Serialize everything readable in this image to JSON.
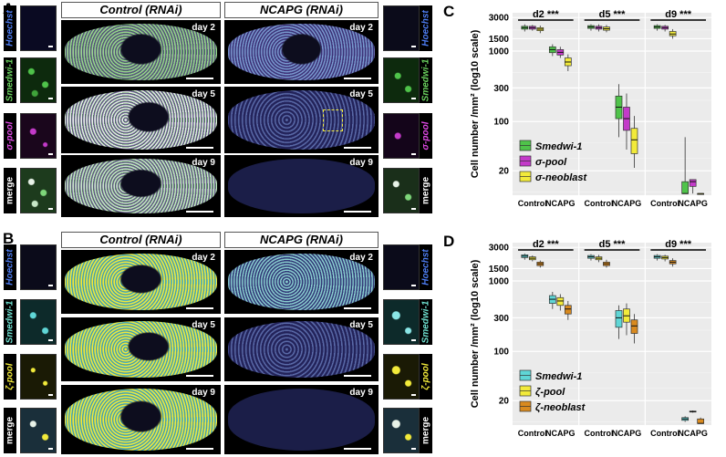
{
  "panels": {
    "A": {
      "letter": "A",
      "control_title": "Control (RNAi)",
      "ncapg_title": "NCAPG (RNAi)",
      "days": [
        "day 2",
        "day 5",
        "day 9"
      ],
      "channels": [
        "Hoechst",
        "Smedwi-1",
        "σ-pool",
        "merge"
      ]
    },
    "B": {
      "letter": "B",
      "control_title": "Control (RNAi)",
      "ncapg_title": "NCAPG (RNAi)",
      "days": [
        "day 2",
        "day 5",
        "day 9"
      ],
      "channels": [
        "Hoechst",
        "Smedwi-1",
        "ζ-pool",
        "merge"
      ]
    }
  },
  "colors": {
    "hoechst": "#3a5bd9",
    "A_smedwi": "#4fc34a",
    "A_pool": "#c33ac9",
    "A_neo": "#f2ea3a",
    "B_smedwi": "#5fd6d6",
    "B_pool": "#f2ea3a",
    "B_neo": "#d98a1f"
  },
  "chart_data": [
    {
      "panel": "C",
      "type": "box",
      "ylabel": "Cell number /mm² (log10 scale)",
      "yscale": "log10",
      "ylim": [
        9,
        3500
      ],
      "yticks": [
        20,
        100,
        300,
        1000,
        1500,
        3000
      ],
      "x_labels": [
        "Control",
        "NCAPG",
        "Control",
        "NCAPG",
        "Control",
        "NCAPG"
      ],
      "day_groups": [
        {
          "label": "d2 ***"
        },
        {
          "label": "d5 ***"
        },
        {
          "label": "d9 ***"
        }
      ],
      "series": [
        {
          "name": "Smedwi-1",
          "color_key": "A_smedwi"
        },
        {
          "name": "σ-pool",
          "color_key": "A_pool"
        },
        {
          "name": "σ-neoblast",
          "color_key": "A_neo"
        }
      ],
      "boxes": [
        {
          "g": 0,
          "c": 0,
          "s": 0,
          "lo": 1900,
          "q1": 2050,
          "med": 2150,
          "q3": 2250,
          "hi": 2400
        },
        {
          "g": 0,
          "c": 0,
          "s": 1,
          "lo": 1950,
          "q1": 2050,
          "med": 2150,
          "q3": 2250,
          "hi": 2350
        },
        {
          "g": 0,
          "c": 0,
          "s": 2,
          "lo": 1800,
          "q1": 1950,
          "med": 2050,
          "q3": 2150,
          "hi": 2300
        },
        {
          "g": 0,
          "c": 1,
          "s": 0,
          "lo": 850,
          "q1": 950,
          "med": 1050,
          "q3": 1150,
          "hi": 1250
        },
        {
          "g": 0,
          "c": 1,
          "s": 1,
          "lo": 800,
          "q1": 880,
          "med": 960,
          "q3": 1050,
          "hi": 1150
        },
        {
          "g": 0,
          "c": 1,
          "s": 2,
          "lo": 520,
          "q1": 620,
          "med": 700,
          "q3": 800,
          "hi": 900
        },
        {
          "g": 1,
          "c": 0,
          "s": 0,
          "lo": 1950,
          "q1": 2100,
          "med": 2200,
          "q3": 2300,
          "hi": 2400
        },
        {
          "g": 1,
          "c": 0,
          "s": 1,
          "lo": 1900,
          "q1": 2050,
          "med": 2150,
          "q3": 2250,
          "hi": 2400
        },
        {
          "g": 1,
          "c": 0,
          "s": 2,
          "lo": 1850,
          "q1": 1980,
          "med": 2080,
          "q3": 2200,
          "hi": 2350
        },
        {
          "g": 1,
          "c": 1,
          "s": 0,
          "lo": 60,
          "q1": 110,
          "med": 160,
          "q3": 230,
          "hi": 340
        },
        {
          "g": 1,
          "c": 1,
          "s": 1,
          "lo": 40,
          "q1": 75,
          "med": 110,
          "q3": 160,
          "hi": 250
        },
        {
          "g": 1,
          "c": 1,
          "s": 2,
          "lo": 22,
          "q1": 35,
          "med": 55,
          "q3": 80,
          "hi": 120
        },
        {
          "g": 2,
          "c": 0,
          "s": 0,
          "lo": 1950,
          "q1": 2100,
          "med": 2200,
          "q3": 2300,
          "hi": 2400
        },
        {
          "g": 2,
          "c": 0,
          "s": 1,
          "lo": 1900,
          "q1": 2050,
          "med": 2150,
          "q3": 2250,
          "hi": 2350
        },
        {
          "g": 2,
          "c": 0,
          "s": 2,
          "lo": 1500,
          "q1": 1650,
          "med": 1750,
          "q3": 1900,
          "hi": 2050
        },
        {
          "g": 2,
          "c": 1,
          "s": 0,
          "lo": 9.5,
          "q1": 9.5,
          "med": 9.5,
          "q3": 14,
          "hi": 60
        },
        {
          "g": 2,
          "c": 1,
          "s": 1,
          "lo": 9.5,
          "q1": 12,
          "med": 14,
          "q3": 15,
          "hi": 15
        },
        {
          "g": 2,
          "c": 1,
          "s": 2,
          "lo": 9.5,
          "q1": 9.5,
          "med": 9.5,
          "q3": 9.5,
          "hi": 9.5
        }
      ]
    },
    {
      "panel": "D",
      "type": "box",
      "ylabel": "Cell number /mm² (log10 scale)",
      "yscale": "log10",
      "ylim": [
        9,
        3500
      ],
      "yticks": [
        20,
        100,
        300,
        1000,
        1500,
        3000
      ],
      "x_labels": [
        "Control",
        "NCAPG",
        "Control",
        "NCAPG",
        "Control",
        "NCAPG"
      ],
      "day_groups": [
        {
          "label": "d2 ***"
        },
        {
          "label": "d5 ***"
        },
        {
          "label": "d9 ***"
        }
      ],
      "series": [
        {
          "name": "Smedwi-1",
          "color_key": "B_smedwi"
        },
        {
          "name": "ζ-pool",
          "color_key": "B_pool"
        },
        {
          "name": "ζ-neoblast",
          "color_key": "B_neo"
        }
      ],
      "boxes": [
        {
          "g": 0,
          "c": 0,
          "s": 0,
          "lo": 2000,
          "q1": 2150,
          "med": 2250,
          "q3": 2350,
          "hi": 2450
        },
        {
          "g": 0,
          "c": 0,
          "s": 1,
          "lo": 1900,
          "q1": 2000,
          "med": 2100,
          "q3": 2200,
          "hi": 2300
        },
        {
          "g": 0,
          "c": 0,
          "s": 2,
          "lo": 1550,
          "q1": 1650,
          "med": 1750,
          "q3": 1850,
          "hi": 1950
        },
        {
          "g": 0,
          "c": 1,
          "s": 0,
          "lo": 400,
          "q1": 480,
          "med": 550,
          "q3": 620,
          "hi": 700
        },
        {
          "g": 0,
          "c": 1,
          "s": 1,
          "lo": 380,
          "q1": 450,
          "med": 520,
          "q3": 580,
          "hi": 650
        },
        {
          "g": 0,
          "c": 1,
          "s": 2,
          "lo": 280,
          "q1": 340,
          "med": 400,
          "q3": 450,
          "hi": 520
        },
        {
          "g": 1,
          "c": 0,
          "s": 0,
          "lo": 1950,
          "q1": 2100,
          "med": 2200,
          "q3": 2300,
          "hi": 2400
        },
        {
          "g": 1,
          "c": 0,
          "s": 1,
          "lo": 1850,
          "q1": 2000,
          "med": 2100,
          "q3": 2200,
          "hi": 2350
        },
        {
          "g": 1,
          "c": 0,
          "s": 2,
          "lo": 1550,
          "q1": 1650,
          "med": 1750,
          "q3": 1850,
          "hi": 2000
        },
        {
          "g": 1,
          "c": 1,
          "s": 0,
          "lo": 150,
          "q1": 220,
          "med": 300,
          "q3": 380,
          "hi": 450
        },
        {
          "g": 1,
          "c": 1,
          "s": 1,
          "lo": 170,
          "q1": 260,
          "med": 320,
          "q3": 400,
          "hi": 480
        },
        {
          "g": 1,
          "c": 1,
          "s": 2,
          "lo": 130,
          "q1": 180,
          "med": 230,
          "q3": 280,
          "hi": 340
        },
        {
          "g": 2,
          "c": 0,
          "s": 0,
          "lo": 1950,
          "q1": 2100,
          "med": 2200,
          "q3": 2300,
          "hi": 2400
        },
        {
          "g": 2,
          "c": 0,
          "s": 1,
          "lo": 1900,
          "q1": 2050,
          "med": 2150,
          "q3": 2250,
          "hi": 2350
        },
        {
          "g": 2,
          "c": 0,
          "s": 2,
          "lo": 1600,
          "q1": 1750,
          "med": 1850,
          "q3": 1950,
          "hi": 2100
        },
        {
          "g": 2,
          "c": 1,
          "s": 0,
          "lo": 10,
          "q1": 10.5,
          "med": 11,
          "q3": 11.5,
          "hi": 12
        },
        {
          "g": 2,
          "c": 1,
          "s": 1,
          "lo": 13.5,
          "q1": 13.8,
          "med": 14,
          "q3": 14.2,
          "hi": 14.5
        },
        {
          "g": 2,
          "c": 1,
          "s": 2,
          "lo": 9.5,
          "q1": 9.5,
          "med": 9.5,
          "q3": 11,
          "hi": 11.5
        }
      ]
    }
  ]
}
